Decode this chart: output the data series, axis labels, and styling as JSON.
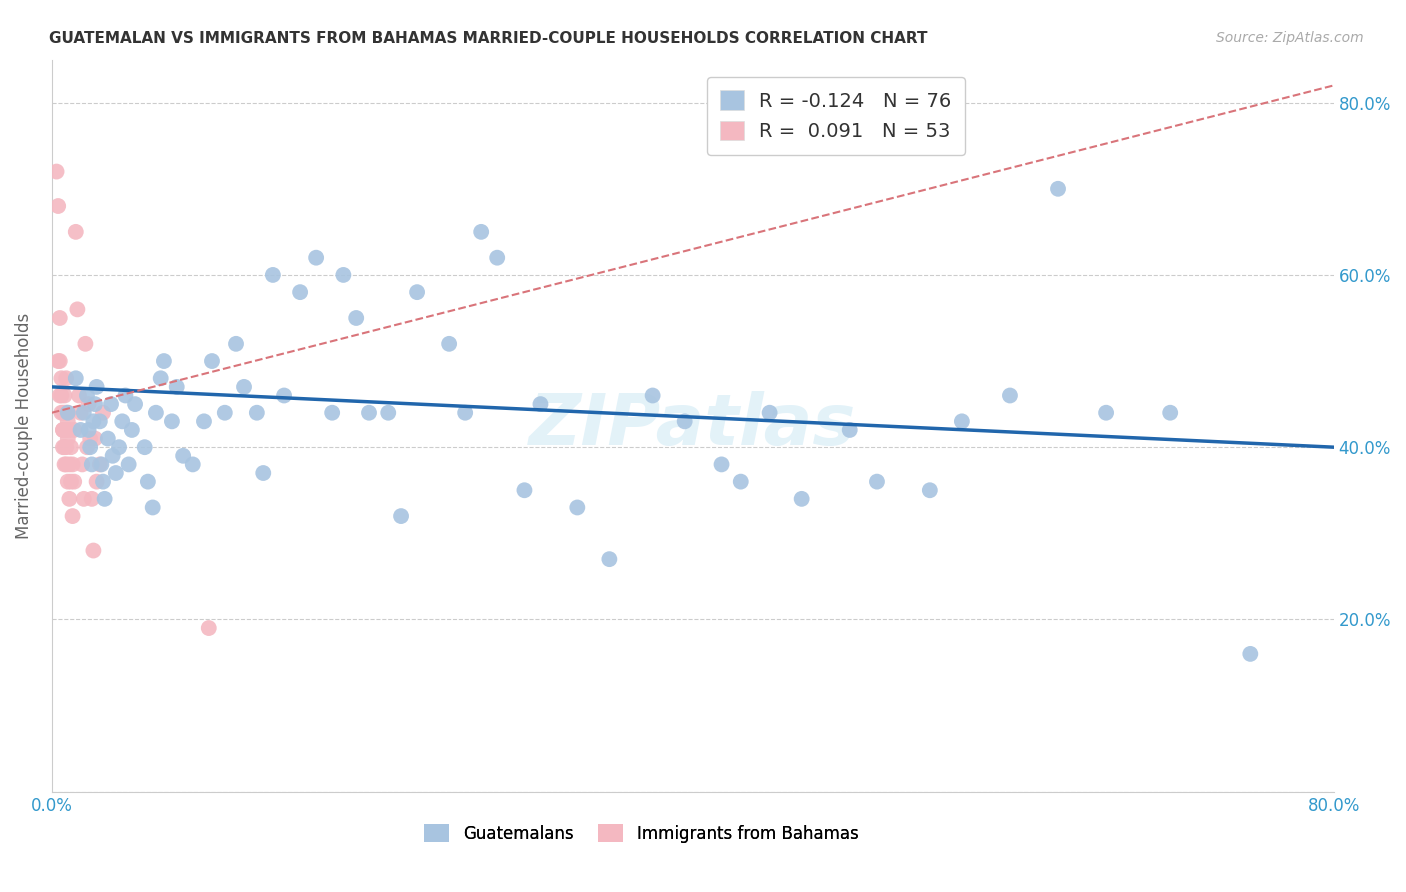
{
  "title": "GUATEMALAN VS IMMIGRANTS FROM BAHAMAS MARRIED-COUPLE HOUSEHOLDS CORRELATION CHART",
  "source": "Source: ZipAtlas.com",
  "ylabel": "Married-couple Households",
  "xlim": [
    0.0,
    0.8
  ],
  "ylim": [
    0.0,
    0.85
  ],
  "ytick_values": [
    0.0,
    0.2,
    0.4,
    0.6,
    0.8
  ],
  "xtick_values": [
    0.0,
    0.1,
    0.2,
    0.3,
    0.4,
    0.5,
    0.6,
    0.7,
    0.8
  ],
  "blue_R": -0.124,
  "blue_N": 76,
  "pink_R": 0.091,
  "pink_N": 53,
  "blue_color": "#a8c4e0",
  "pink_color": "#f4b8c1",
  "blue_line_color": "#2166ac",
  "pink_line_color": "#d9747a",
  "watermark": "ZIPatlas",
  "blue_x": [
    0.01,
    0.015,
    0.018,
    0.02,
    0.022,
    0.023,
    0.024,
    0.025,
    0.026,
    0.027,
    0.028,
    0.03,
    0.031,
    0.032,
    0.033,
    0.035,
    0.037,
    0.038,
    0.04,
    0.042,
    0.044,
    0.046,
    0.048,
    0.05,
    0.052,
    0.058,
    0.06,
    0.063,
    0.065,
    0.068,
    0.07,
    0.075,
    0.078,
    0.082,
    0.088,
    0.095,
    0.1,
    0.108,
    0.115,
    0.12,
    0.128,
    0.132,
    0.138,
    0.145,
    0.155,
    0.165,
    0.175,
    0.182,
    0.19,
    0.198,
    0.21,
    0.218,
    0.228,
    0.248,
    0.258,
    0.268,
    0.278,
    0.295,
    0.305,
    0.328,
    0.348,
    0.375,
    0.395,
    0.418,
    0.43,
    0.448,
    0.468,
    0.498,
    0.515,
    0.548,
    0.568,
    0.598,
    0.628,
    0.658,
    0.698,
    0.748
  ],
  "blue_y": [
    0.44,
    0.48,
    0.42,
    0.44,
    0.46,
    0.42,
    0.4,
    0.38,
    0.43,
    0.45,
    0.47,
    0.43,
    0.38,
    0.36,
    0.34,
    0.41,
    0.45,
    0.39,
    0.37,
    0.4,
    0.43,
    0.46,
    0.38,
    0.42,
    0.45,
    0.4,
    0.36,
    0.33,
    0.44,
    0.48,
    0.5,
    0.43,
    0.47,
    0.39,
    0.38,
    0.43,
    0.5,
    0.44,
    0.52,
    0.47,
    0.44,
    0.37,
    0.6,
    0.46,
    0.58,
    0.62,
    0.44,
    0.6,
    0.55,
    0.44,
    0.44,
    0.32,
    0.58,
    0.52,
    0.44,
    0.65,
    0.62,
    0.35,
    0.45,
    0.33,
    0.27,
    0.46,
    0.43,
    0.38,
    0.36,
    0.44,
    0.34,
    0.42,
    0.36,
    0.35,
    0.43,
    0.46,
    0.7,
    0.44,
    0.44,
    0.16
  ],
  "pink_x": [
    0.003,
    0.004,
    0.004,
    0.005,
    0.005,
    0.005,
    0.006,
    0.006,
    0.006,
    0.007,
    0.007,
    0.007,
    0.007,
    0.008,
    0.008,
    0.008,
    0.008,
    0.008,
    0.009,
    0.009,
    0.009,
    0.009,
    0.009,
    0.01,
    0.01,
    0.01,
    0.01,
    0.011,
    0.011,
    0.011,
    0.012,
    0.012,
    0.013,
    0.013,
    0.014,
    0.014,
    0.015,
    0.016,
    0.017,
    0.018,
    0.019,
    0.02,
    0.021,
    0.022,
    0.023,
    0.024,
    0.025,
    0.026,
    0.027,
    0.028,
    0.03,
    0.032,
    0.098
  ],
  "pink_y": [
    0.72,
    0.68,
    0.5,
    0.55,
    0.46,
    0.5,
    0.44,
    0.46,
    0.48,
    0.42,
    0.44,
    0.42,
    0.4,
    0.44,
    0.42,
    0.4,
    0.38,
    0.46,
    0.44,
    0.42,
    0.4,
    0.48,
    0.38,
    0.43,
    0.41,
    0.36,
    0.44,
    0.42,
    0.38,
    0.34,
    0.4,
    0.36,
    0.38,
    0.32,
    0.36,
    0.42,
    0.65,
    0.56,
    0.46,
    0.44,
    0.38,
    0.34,
    0.52,
    0.4,
    0.45,
    0.41,
    0.34,
    0.28,
    0.41,
    0.36,
    0.38,
    0.44,
    0.19
  ],
  "blue_line_x0": 0.0,
  "blue_line_x1": 0.8,
  "blue_line_y0": 0.47,
  "blue_line_y1": 0.4,
  "pink_line_x0": 0.0,
  "pink_line_x1": 0.8,
  "pink_line_y0": 0.44,
  "pink_line_y1": 0.82
}
